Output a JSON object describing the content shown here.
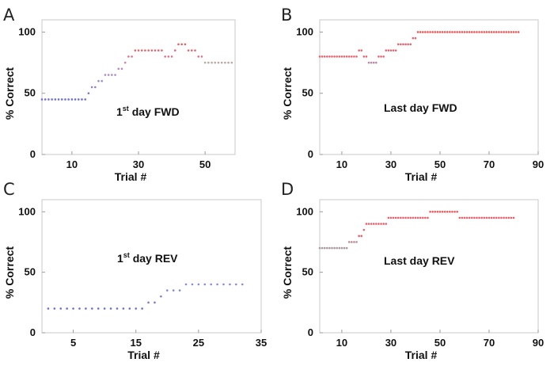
{
  "figure": {
    "y_ticks": [
      "0",
      "50",
      "100"
    ]
  },
  "chart_data": [
    {
      "panel": "A",
      "type": "scatter",
      "annotation": {
        "prefix": "1",
        "sup": "st",
        "suffix": " day FWD"
      },
      "xlabel": "Trial #",
      "ylabel": "% Correct",
      "xlim": [
        1,
        59
      ],
      "ylim": [
        0,
        110
      ],
      "xticks": [
        10,
        30,
        50
      ],
      "x": [
        1,
        2,
        3,
        4,
        5,
        6,
        7,
        8,
        9,
        10,
        11,
        12,
        13,
        14,
        15,
        16,
        17,
        18,
        19,
        20,
        21,
        22,
        23,
        24,
        25,
        26,
        27,
        28,
        29,
        30,
        31,
        32,
        33,
        34,
        35,
        36,
        37,
        38,
        39,
        40,
        41,
        42,
        43,
        44,
        45,
        46,
        47,
        48,
        49,
        50,
        51,
        52,
        53,
        54,
        55,
        56,
        57,
        58
      ],
      "values": [
        45,
        45,
        45,
        45,
        45,
        45,
        45,
        45,
        45,
        45,
        45,
        45,
        45,
        45,
        50,
        55,
        55,
        60,
        60,
        65,
        65,
        65,
        65,
        70,
        70,
        75,
        80,
        80,
        85,
        85,
        85,
        85,
        85,
        85,
        85,
        85,
        85,
        80,
        80,
        80,
        85,
        90,
        90,
        90,
        85,
        85,
        85,
        80,
        80,
        75,
        75,
        75,
        75,
        75,
        75,
        75,
        75,
        75
      ],
      "colors": [
        "#6f6fd8",
        "#6f6fd8",
        "#6f6fd8",
        "#6f6fd8",
        "#6f6fd8",
        "#6f6fd8",
        "#6f6fd8",
        "#6f6fd8",
        "#6f6fd8",
        "#6f6fd8",
        "#6f6fd8",
        "#6f6fd8",
        "#6f6fd8",
        "#6f6fd8",
        "#7b7ad6",
        "#8d80d2",
        "#8d80d2",
        "#9c86cc",
        "#9c86cc",
        "#a88ac4",
        "#a88ac4",
        "#a88ac4",
        "#a88ac4",
        "#b78aba",
        "#b78aba",
        "#c886ae",
        "#dc6f86",
        "#dc6f86",
        "#e8606b",
        "#e8606b",
        "#e8606b",
        "#e8606b",
        "#e8606b",
        "#e8606b",
        "#e8606b",
        "#e8606b",
        "#e8606b",
        "#dc6f86",
        "#dc6f86",
        "#dc6f86",
        "#e8606b",
        "#ee5a5a",
        "#ee5a5a",
        "#ee5a5a",
        "#e8606b",
        "#e8606b",
        "#e8606b",
        "#dc6f86",
        "#dc6f86",
        "#b9a9a2",
        "#b9a9a2",
        "#b9a9a2",
        "#b9a9a2",
        "#b9a9a2",
        "#b9a9a2",
        "#b9a9a2",
        "#b9a9a2",
        "#b9a9a2"
      ]
    },
    {
      "panel": "B",
      "type": "scatter",
      "annotation": {
        "prefix": "Last day FWD",
        "sup": "",
        "suffix": ""
      },
      "xlabel": "Trial #",
      "ylabel": "% Correct",
      "xlim": [
        1,
        90
      ],
      "ylim": [
        0,
        110
      ],
      "xticks": [
        10,
        30,
        50,
        70,
        90
      ],
      "x": [
        1,
        2,
        3,
        4,
        5,
        6,
        7,
        8,
        9,
        10,
        11,
        12,
        13,
        14,
        15,
        16,
        17,
        18,
        19,
        20,
        21,
        22,
        23,
        24,
        25,
        26,
        27,
        28,
        29,
        30,
        31,
        32,
        33,
        34,
        35,
        36,
        37,
        38,
        39,
        40,
        41,
        42,
        43,
        44,
        45,
        46,
        47,
        48,
        49,
        50,
        51,
        52,
        53,
        54,
        55,
        56,
        57,
        58,
        59,
        60,
        61,
        62,
        63,
        64,
        65,
        66,
        67,
        68,
        69,
        70,
        71,
        72,
        73,
        74,
        75,
        76,
        77,
        78,
        79,
        80,
        81,
        82
      ],
      "values": [
        80,
        80,
        80,
        80,
        80,
        80,
        80,
        80,
        80,
        80,
        80,
        80,
        80,
        80,
        80,
        80,
        85,
        85,
        80,
        80,
        75,
        75,
        75,
        75,
        80,
        80,
        80,
        85,
        85,
        85,
        85,
        85,
        90,
        90,
        90,
        90,
        90,
        90,
        95,
        95,
        100,
        100,
        100,
        100,
        100,
        100,
        100,
        100,
        100,
        100,
        100,
        100,
        100,
        100,
        100,
        100,
        100,
        100,
        100,
        100,
        100,
        100,
        100,
        100,
        100,
        100,
        100,
        100,
        100,
        100,
        100,
        100,
        100,
        100,
        100,
        100,
        100,
        100,
        100,
        100,
        100,
        100
      ],
      "colors": [
        "#e8606b",
        "#e8606b",
        "#e8606b",
        "#e8606b",
        "#e8606b",
        "#e8606b",
        "#e8606b",
        "#e8606b",
        "#e8606b",
        "#e8606b",
        "#e8606b",
        "#e8606b",
        "#e8606b",
        "#e8606b",
        "#e8606b",
        "#e8606b",
        "#e8606b",
        "#e8606b",
        "#e8606b",
        "#e8606b",
        "#b88aa8",
        "#b88aa8",
        "#b88aa8",
        "#b88aa8",
        "#e8606b",
        "#e8606b",
        "#e8606b",
        "#e8606b",
        "#e8606b",
        "#e8606b",
        "#e8606b",
        "#e8606b",
        "#e8606b",
        "#e8606b",
        "#e8606b",
        "#e8606b",
        "#e8606b",
        "#e8606b",
        "#e8606b",
        "#e8606b",
        "#ee5a5a",
        "#ee5a5a",
        "#ee5a5a",
        "#ee5a5a",
        "#ee5a5a",
        "#ee5a5a",
        "#ee5a5a",
        "#ee5a5a",
        "#ee5a5a",
        "#ee5a5a",
        "#ee5a5a",
        "#ee5a5a",
        "#ee5a5a",
        "#ee5a5a",
        "#ee5a5a",
        "#ee5a5a",
        "#ee5a5a",
        "#ee5a5a",
        "#ee5a5a",
        "#ee5a5a",
        "#ee5a5a",
        "#ee5a5a",
        "#ee5a5a",
        "#ee5a5a",
        "#ee5a5a",
        "#ee5a5a",
        "#ee5a5a",
        "#ee5a5a",
        "#ee5a5a",
        "#ee5a5a",
        "#ee5a5a",
        "#ee5a5a",
        "#ee5a5a",
        "#ee5a5a",
        "#ee5a5a",
        "#ee5a5a",
        "#ee5a5a",
        "#ee5a5a",
        "#ee5a5a",
        "#ee5a5a",
        "#ee5a5a",
        "#ee5a5a"
      ]
    },
    {
      "panel": "C",
      "type": "scatter",
      "annotation": {
        "prefix": "1",
        "sup": "st",
        "suffix": " day REV"
      },
      "xlabel": "Trial #",
      "ylabel": "% Correct",
      "xlim": [
        0,
        35
      ],
      "ylim": [
        0,
        110
      ],
      "xticks": [
        5,
        15,
        25,
        35
      ],
      "x": [
        1,
        2,
        3,
        4,
        5,
        6,
        7,
        8,
        9,
        10,
        11,
        12,
        13,
        14,
        15,
        16,
        17,
        18,
        19,
        20,
        21,
        22,
        23,
        24,
        25,
        26,
        27,
        28,
        29,
        30,
        31,
        32
      ],
      "values": [
        20,
        20,
        20,
        20,
        20,
        20,
        20,
        20,
        20,
        20,
        20,
        20,
        20,
        20,
        20,
        20,
        25,
        25,
        30,
        35,
        35,
        35,
        40,
        40,
        40,
        40,
        40,
        40,
        40,
        40,
        40,
        40
      ],
      "colors": [
        "#6f6fd8",
        "#6f6fd8",
        "#6f6fd8",
        "#6f6fd8",
        "#6f6fd8",
        "#6f6fd8",
        "#6f6fd8",
        "#6f6fd8",
        "#6f6fd8",
        "#6f6fd8",
        "#6f6fd8",
        "#6f6fd8",
        "#6f6fd8",
        "#6f6fd8",
        "#6f6fd8",
        "#6f6fd8",
        "#7878d6",
        "#7878d6",
        "#7e7dd4",
        "#8383d2",
        "#8383d2",
        "#8383d2",
        "#8b89d0",
        "#8b89d0",
        "#8b89d0",
        "#8b89d0",
        "#8b89d0",
        "#8b89d0",
        "#8b89d0",
        "#8b89d0",
        "#8b89d0",
        "#8b89d0"
      ]
    },
    {
      "panel": "D",
      "type": "scatter",
      "annotation": {
        "prefix": "Last day REV",
        "sup": "",
        "suffix": ""
      },
      "xlabel": "Trial #",
      "ylabel": "% Correct",
      "xlim": [
        1,
        90
      ],
      "ylim": [
        0,
        110
      ],
      "xticks": [
        10,
        30,
        50,
        70,
        90
      ],
      "x": [
        1,
        2,
        3,
        4,
        5,
        6,
        7,
        8,
        9,
        10,
        11,
        12,
        13,
        14,
        15,
        16,
        17,
        18,
        19,
        20,
        21,
        22,
        23,
        24,
        25,
        26,
        27,
        28,
        29,
        30,
        31,
        32,
        33,
        34,
        35,
        36,
        37,
        38,
        39,
        40,
        41,
        42,
        43,
        44,
        45,
        46,
        47,
        48,
        49,
        50,
        51,
        52,
        53,
        54,
        55,
        56,
        57,
        58,
        59,
        60,
        61,
        62,
        63,
        64,
        65,
        66,
        67,
        68,
        69,
        70,
        71,
        72,
        73,
        74,
        75,
        76,
        77,
        78,
        79,
        80
      ],
      "values": [
        70,
        70,
        70,
        70,
        70,
        70,
        70,
        70,
        70,
        70,
        70,
        70,
        75,
        75,
        75,
        75,
        80,
        80,
        85,
        90,
        90,
        90,
        90,
        90,
        90,
        90,
        90,
        90,
        95,
        95,
        95,
        95,
        95,
        95,
        95,
        95,
        95,
        95,
        95,
        95,
        95,
        95,
        95,
        95,
        95,
        100,
        100,
        100,
        100,
        100,
        100,
        100,
        100,
        100,
        100,
        100,
        100,
        95,
        95,
        95,
        95,
        95,
        95,
        95,
        95,
        95,
        95,
        95,
        95,
        95,
        95,
        95,
        95,
        95,
        95,
        95,
        95,
        95,
        95,
        95
      ],
      "colors": [
        "#a89aa0",
        "#a89aa0",
        "#a89aa0",
        "#a89aa0",
        "#a89aa0",
        "#a89aa0",
        "#a89aa0",
        "#a89aa0",
        "#a89aa0",
        "#a89aa0",
        "#a89aa0",
        "#a89aa0",
        "#b69098",
        "#b69098",
        "#b69098",
        "#b69098",
        "#e8606b",
        "#e8606b",
        "#e8606b",
        "#e8606b",
        "#e8606b",
        "#e8606b",
        "#e8606b",
        "#e8606b",
        "#e8606b",
        "#e8606b",
        "#e8606b",
        "#e8606b",
        "#e8606b",
        "#e8606b",
        "#e8606b",
        "#e8606b",
        "#e8606b",
        "#e8606b",
        "#e8606b",
        "#e8606b",
        "#e8606b",
        "#e8606b",
        "#e8606b",
        "#e8606b",
        "#e8606b",
        "#e8606b",
        "#e8606b",
        "#e8606b",
        "#e8606b",
        "#ee5a5a",
        "#ee5a5a",
        "#ee5a5a",
        "#ee5a5a",
        "#ee5a5a",
        "#ee5a5a",
        "#ee5a5a",
        "#ee5a5a",
        "#ee5a5a",
        "#ee5a5a",
        "#ee5a5a",
        "#ee5a5a",
        "#e8606b",
        "#e8606b",
        "#e8606b",
        "#e8606b",
        "#e8606b",
        "#e8606b",
        "#e8606b",
        "#e8606b",
        "#e8606b",
        "#e8606b",
        "#e8606b",
        "#e8606b",
        "#e8606b",
        "#e8606b",
        "#e8606b",
        "#e8606b",
        "#e8606b",
        "#e8606b",
        "#e8606b",
        "#e8606b",
        "#e8606b",
        "#e8606b",
        "#e8606b"
      ]
    }
  ]
}
